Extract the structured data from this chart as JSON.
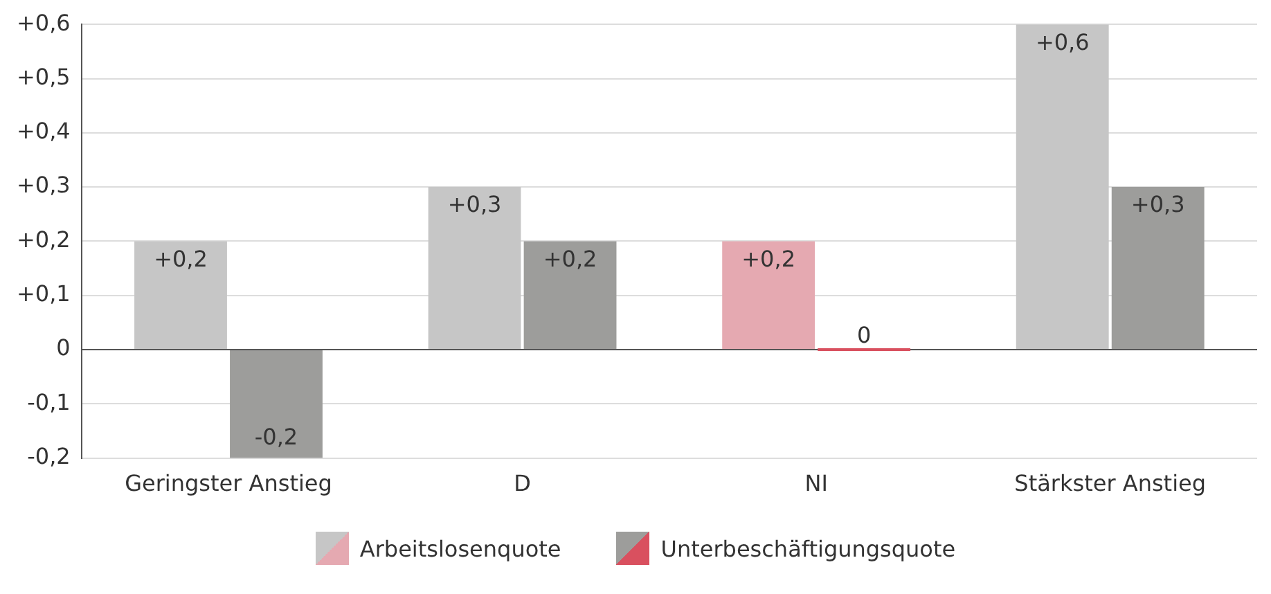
{
  "chart_data": {
    "type": "bar",
    "categories": [
      "Geringster Anstieg",
      "D",
      "NI",
      "Stärkster Anstieg"
    ],
    "series": [
      {
        "name": "Arbeitslosenquote",
        "color": "#c6c6c6",
        "colors": [
          "#c6c6c6",
          "#c6c6c6",
          "#e5a9b1",
          "#c6c6c6"
        ],
        "values": [
          0.2,
          0.3,
          0.2,
          0.6
        ],
        "value_labels": [
          "+0,2",
          "+0,3",
          "+0,2",
          "+0,6"
        ]
      },
      {
        "name": "Unterbeschäftigungsquote",
        "color": "#9d9d9b",
        "colors": [
          "#9d9d9b",
          "#9d9d9b",
          "#d9505f",
          "#9d9d9b"
        ],
        "values": [
          -0.2,
          0.2,
          0,
          0.3
        ],
        "value_labels": [
          "-0,2",
          "+0,2",
          "0",
          "+0,3"
        ]
      }
    ],
    "ylim": [
      -0.2,
      0.6
    ],
    "yticks": [
      {
        "value": -0.2,
        "label": "-0,2"
      },
      {
        "value": -0.1,
        "label": "-0,1"
      },
      0,
      {
        "value": 0.1,
        "label": "+0,1"
      },
      {
        "value": 0.2,
        "label": "+0,2"
      },
      {
        "value": 0.3,
        "label": "+0,3"
      },
      {
        "value": 0.4,
        "label": "+0,4"
      },
      {
        "value": 0.5,
        "label": "+0,5"
      },
      {
        "value": 0.6,
        "label": "+0,6"
      }
    ],
    "grid": "y",
    "legend": "bottom"
  }
}
